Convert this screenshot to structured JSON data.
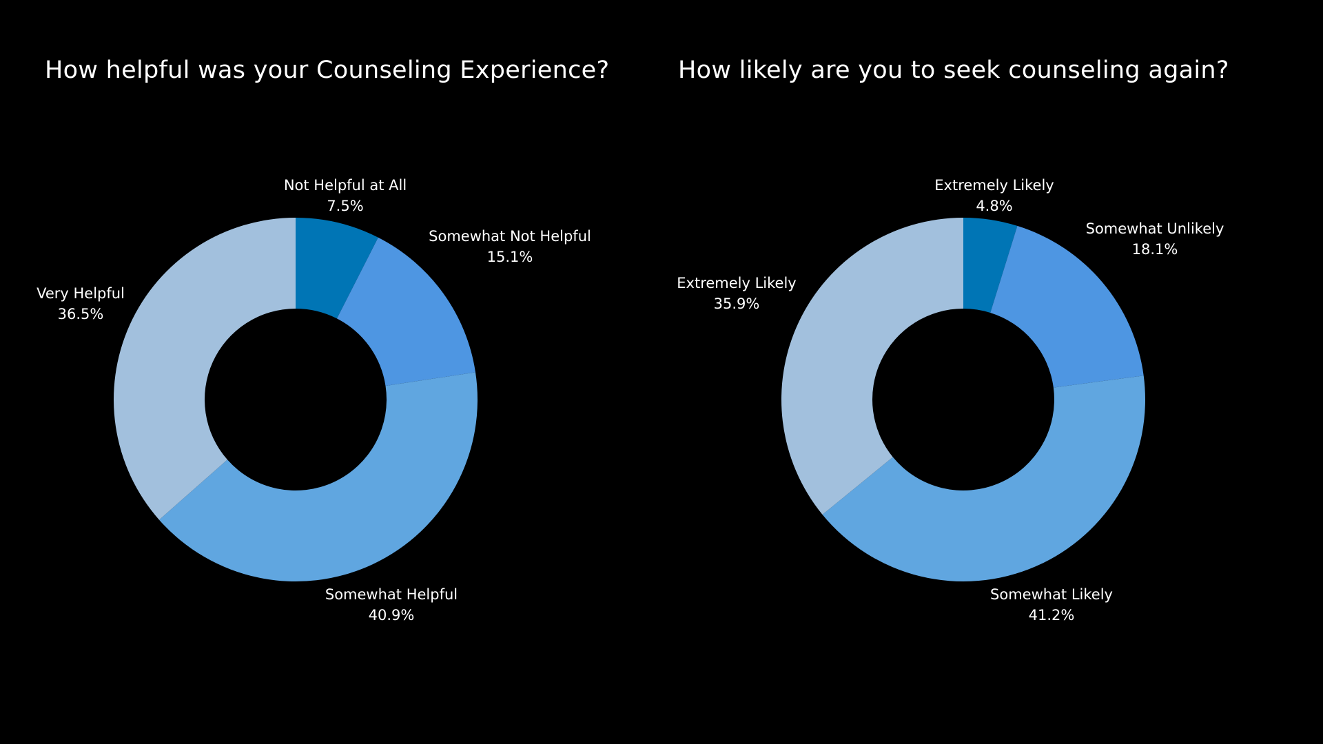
{
  "chart_data": [
    {
      "type": "pie",
      "title": "How helpful was your Counseling Experience?",
      "donut": true,
      "categories": [
        "Not Helpful at All",
        "Somewhat Not Helpful",
        "Somewhat Helpful",
        "Very Helpful"
      ],
      "values": [
        7.5,
        15.1,
        40.9,
        36.5
      ],
      "value_labels": [
        "7.5%",
        "15.1%",
        "40.9%",
        "36.5%"
      ],
      "colors": [
        "#0075b5",
        "#4e96e2",
        "#60a6e0",
        "#a2c0dd"
      ],
      "legend": "none"
    },
    {
      "type": "pie",
      "title": "How likely are you to seek counseling again?",
      "donut": true,
      "categories": [
        "Extremely Likely",
        "Somewhat Unlikely",
        "Somewhat Likely",
        "Extremely Likely"
      ],
      "values": [
        4.8,
        18.1,
        41.2,
        35.9
      ],
      "value_labels": [
        "4.8%",
        "18.1%",
        "41.2%",
        "35.9%"
      ],
      "colors": [
        "#0075b5",
        "#4e96e2",
        "#60a6e0",
        "#a2c0dd"
      ],
      "legend": "none"
    }
  ]
}
